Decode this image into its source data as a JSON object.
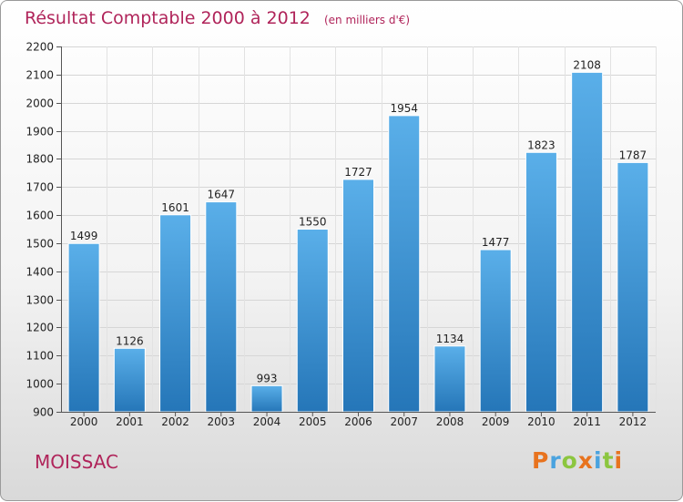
{
  "title": "Résultat Comptable 2000 à 2012",
  "subtitle": "(en milliers d'€)",
  "city": "MOISSAC",
  "brand": {
    "letters": [
      "P",
      "r",
      "o",
      "x",
      "i",
      "t",
      "i"
    ],
    "colors": [
      "#e8731e",
      "#4aa3df",
      "#8cc63f",
      "#e8731e",
      "#4aa3df",
      "#8cc63f",
      "#e8731e"
    ]
  },
  "colors": {
    "bar_top": "#5aafe9",
    "bar_bottom": "#2576b8",
    "accent": "#b0245a"
  },
  "chart_data": {
    "type": "bar",
    "title": "Résultat Comptable 2000 à 2012",
    "ylabel": "(en milliers d'€)",
    "xlabel": "",
    "categories": [
      "2000",
      "2001",
      "2002",
      "2003",
      "2004",
      "2005",
      "2006",
      "2007",
      "2008",
      "2009",
      "2010",
      "2011",
      "2012"
    ],
    "values": [
      1499,
      1126,
      1601,
      1647,
      993,
      1550,
      1727,
      1954,
      1134,
      1477,
      1823,
      2108,
      1787
    ],
    "ylim": [
      900,
      2200
    ],
    "yticks": [
      900,
      1000,
      1100,
      1200,
      1300,
      1400,
      1500,
      1600,
      1700,
      1800,
      1900,
      2000,
      2100,
      2200
    ],
    "grid": true
  }
}
